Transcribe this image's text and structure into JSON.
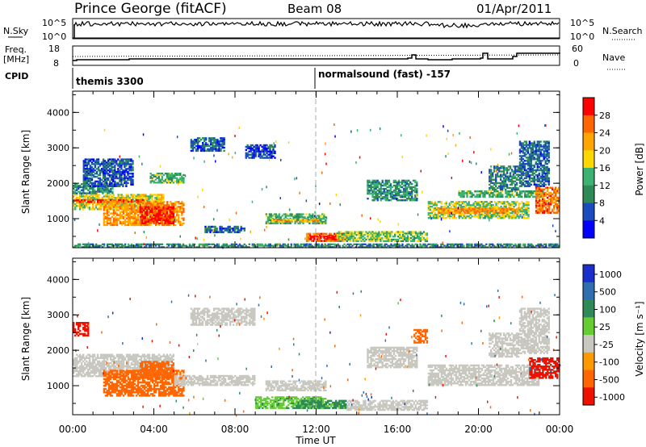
{
  "header": {
    "station": "Prince George (fitACF)",
    "beam": "Beam 08",
    "date": "01/Apr/2011"
  },
  "sky_panel": {
    "left_label": "N.Sky",
    "right_label": "N.Search",
    "left_ticks": [
      "10^5",
      "10^0"
    ],
    "right_ticks": [
      "10^5",
      "10^0"
    ]
  },
  "freq_panel": {
    "left_label_1": "Freq.",
    "left_label_2": "[MHz]",
    "right_label": "Nave",
    "left_ticks": [
      "18",
      "8"
    ],
    "right_ticks": [
      "60",
      "0"
    ],
    "cpid_label": "CPID"
  },
  "cpid": [
    {
      "name": "themis 3300",
      "start": "00:00"
    },
    {
      "name": "normalsound (fast) -157",
      "start": "12:00"
    }
  ],
  "colors": {
    "power": [
      "#0000ff",
      "#1a4cbf",
      "#2e8b57",
      "#3cb371",
      "#ffd700",
      "#ffa500",
      "#ff6600",
      "#ff0000"
    ],
    "velocity": [
      "#1a2ecc",
      "#2e6fb0",
      "#2e8b57",
      "#66cc33",
      "#c8c8c0",
      "#ff9900",
      "#ff6600",
      "#ee1100"
    ]
  },
  "chart_data": [
    {
      "type": "heatmap",
      "title": "Power",
      "xlabel": "",
      "ylabel": "Slant Range [km]",
      "colorbar_label": "Power [dB]",
      "colorbar_ticks": [
        "28",
        "24",
        "20",
        "16",
        "12",
        "8",
        "4"
      ],
      "x_ticks": [
        "00:00",
        "04:00",
        "08:00",
        "12:00",
        "16:00",
        "20:00",
        "00:00"
      ],
      "x_range_hours": [
        0,
        24
      ],
      "y_ticks": [
        "4000",
        "3000",
        "2000",
        "1000"
      ],
      "y_range_km": [
        180,
        4600
      ],
      "value_range_db": [
        0,
        30
      ],
      "regions": [
        {
          "t0": 0.0,
          "t1": 4.5,
          "r0": 1250,
          "r1": 1700,
          "v": 17
        },
        {
          "t0": 0.0,
          "t1": 3.5,
          "r0": 1450,
          "r1": 1550,
          "v": 27
        },
        {
          "t0": 0.0,
          "t1": 2.0,
          "r0": 1700,
          "r1": 2000,
          "v": 10
        },
        {
          "t0": 0.5,
          "t1": 3.0,
          "r0": 1900,
          "r1": 2700,
          "v": 6
        },
        {
          "t0": 3.8,
          "t1": 5.5,
          "r0": 2000,
          "r1": 2300,
          "v": 12
        },
        {
          "t0": 1.5,
          "t1": 5.5,
          "r0": 800,
          "r1": 1500,
          "v": 22
        },
        {
          "t0": 3.3,
          "t1": 5.0,
          "r0": 850,
          "r1": 1350,
          "v": 28
        },
        {
          "t0": 5.8,
          "t1": 7.5,
          "r0": 2900,
          "r1": 3300,
          "v": 6
        },
        {
          "t0": 6.5,
          "t1": 8.5,
          "r0": 600,
          "r1": 800,
          "v": 7
        },
        {
          "t0": 8.5,
          "t1": 10.0,
          "r0": 2700,
          "r1": 3100,
          "v": 5
        },
        {
          "t0": 9.5,
          "t1": 12.5,
          "r0": 850,
          "r1": 1150,
          "v": 12
        },
        {
          "t0": 9.8,
          "t1": 12.2,
          "r0": 900,
          "r1": 1000,
          "v": 20
        },
        {
          "t0": 11.5,
          "t1": 13.5,
          "r0": 350,
          "r1": 600,
          "v": 24
        },
        {
          "t0": 11.7,
          "t1": 13.0,
          "r0": 400,
          "r1": 520,
          "v": 29
        },
        {
          "t0": 13.0,
          "t1": 17.5,
          "r0": 350,
          "r1": 650,
          "v": 14
        },
        {
          "t0": 14.5,
          "t1": 17.0,
          "r0": 1500,
          "r1": 2100,
          "v": 10
        },
        {
          "t0": 17.5,
          "t1": 22.5,
          "r0": 1000,
          "r1": 1500,
          "v": 15
        },
        {
          "t0": 18.0,
          "t1": 22.0,
          "r0": 1150,
          "r1": 1300,
          "v": 22
        },
        {
          "t0": 19.0,
          "t1": 23.2,
          "r0": 1600,
          "r1": 1800,
          "v": 12
        },
        {
          "t0": 20.5,
          "t1": 22.0,
          "r0": 1800,
          "r1": 2500,
          "v": 9
        },
        {
          "t0": 22.8,
          "t1": 24.0,
          "r0": 1150,
          "r1": 1900,
          "v": 24
        },
        {
          "t0": 22.0,
          "t1": 23.5,
          "r0": 1900,
          "r1": 3200,
          "v": 7
        },
        {
          "t0": 0.0,
          "t1": 24.0,
          "r0": 180,
          "r1": 300,
          "v": 9
        }
      ]
    },
    {
      "type": "heatmap",
      "title": "Velocity",
      "xlabel": "Time UT",
      "ylabel": "Slant Range [km]",
      "colorbar_label": "Velocity [m s⁻¹]",
      "colorbar_ticks": [
        "1000",
        "500",
        "100",
        "25",
        "-25",
        "-100",
        "-500",
        "-1000"
      ],
      "x_ticks": [
        "00:00",
        "04:00",
        "08:00",
        "12:00",
        "16:00",
        "20:00",
        "00:00"
      ],
      "x_range_hours": [
        0,
        24
      ],
      "y_ticks": [
        "4000",
        "3000",
        "2000",
        "1000"
      ],
      "y_range_km": [
        180,
        4600
      ],
      "regions": [
        {
          "t0": 0.0,
          "t1": 5.0,
          "r0": 1250,
          "r1": 1900,
          "v": 0
        },
        {
          "t0": 1.5,
          "t1": 5.5,
          "r0": 700,
          "r1": 1450,
          "v": -150
        },
        {
          "t0": 3.3,
          "t1": 5.0,
          "r0": 1200,
          "r1": 1700,
          "v": -300
        },
        {
          "t0": 0.0,
          "t1": 0.8,
          "r0": 2400,
          "r1": 2800,
          "v": -800
        },
        {
          "t0": 5.0,
          "t1": 9.0,
          "r0": 1000,
          "r1": 1300,
          "v": 0
        },
        {
          "t0": 5.8,
          "t1": 9.0,
          "r0": 2700,
          "r1": 3200,
          "v": 0
        },
        {
          "t0": 9.5,
          "t1": 12.5,
          "r0": 850,
          "r1": 1150,
          "v": 0
        },
        {
          "t0": 9.0,
          "t1": 12.5,
          "r0": 350,
          "r1": 700,
          "v": 50
        },
        {
          "t0": 11.0,
          "t1": 13.5,
          "r0": 350,
          "r1": 600,
          "v": 70
        },
        {
          "t0": 13.5,
          "t1": 17.5,
          "r0": 300,
          "r1": 600,
          "v": 0
        },
        {
          "t0": 14.5,
          "t1": 17.0,
          "r0": 1500,
          "r1": 2100,
          "v": 0
        },
        {
          "t0": 16.8,
          "t1": 17.5,
          "r0": 2200,
          "r1": 2600,
          "v": -200
        },
        {
          "t0": 17.5,
          "t1": 23.0,
          "r0": 1000,
          "r1": 1600,
          "v": 0
        },
        {
          "t0": 20.5,
          "t1": 22.0,
          "r0": 1800,
          "r1": 2500,
          "v": 0
        },
        {
          "t0": 22.5,
          "t1": 24.0,
          "r0": 1200,
          "r1": 1800,
          "v": -600
        },
        {
          "t0": 22.0,
          "t1": 23.5,
          "r0": 1900,
          "r1": 3200,
          "v": 0
        }
      ]
    }
  ]
}
